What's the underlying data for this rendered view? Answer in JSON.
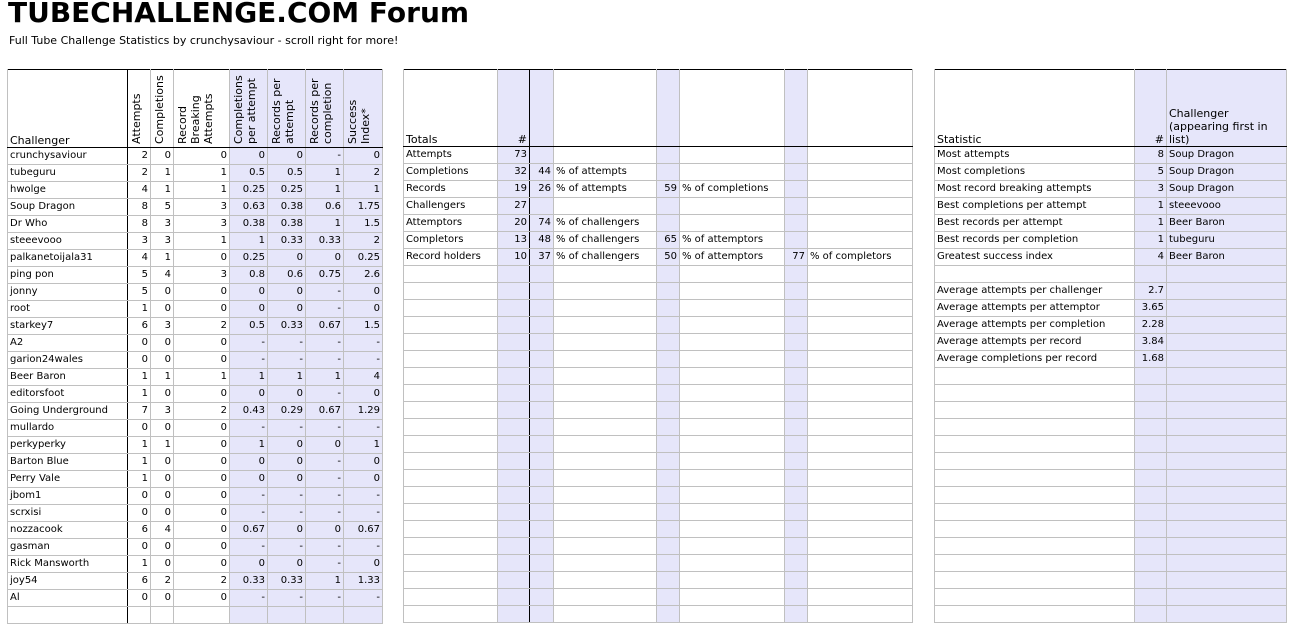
{
  "header": {
    "title": "TUBECHALLENGE.COM Forum",
    "subtitle": "Full Tube Challenge Statistics by crunchysaviour - scroll right for more!"
  },
  "colors": {
    "shaded_column": "#e6e6fa",
    "grid": "#c0c0c0"
  },
  "challengers_table": {
    "columns": [
      "Challenger",
      "Attempts",
      "Completions",
      "Record Breaking Attempts",
      "Completions per attempt",
      "Records per attempt",
      "Records per completion",
      "Success Index*"
    ],
    "rows": [
      [
        "crunchysaviour",
        "2",
        "0",
        "0",
        "0",
        "0",
        "-",
        "0"
      ],
      [
        "tubeguru",
        "2",
        "1",
        "1",
        "0.5",
        "0.5",
        "1",
        "2"
      ],
      [
        "hwolge",
        "4",
        "1",
        "1",
        "0.25",
        "0.25",
        "1",
        "1"
      ],
      [
        "Soup Dragon",
        "8",
        "5",
        "3",
        "0.63",
        "0.38",
        "0.6",
        "1.75"
      ],
      [
        "Dr Who",
        "8",
        "3",
        "3",
        "0.38",
        "0.38",
        "1",
        "1.5"
      ],
      [
        "steeevooo",
        "3",
        "3",
        "1",
        "1",
        "0.33",
        "0.33",
        "2"
      ],
      [
        "palkanetoijala31",
        "4",
        "1",
        "0",
        "0.25",
        "0",
        "0",
        "0.25"
      ],
      [
        "ping pon",
        "5",
        "4",
        "3",
        "0.8",
        "0.6",
        "0.75",
        "2.6"
      ],
      [
        "jonny",
        "5",
        "0",
        "0",
        "0",
        "0",
        "-",
        "0"
      ],
      [
        "root",
        "1",
        "0",
        "0",
        "0",
        "0",
        "-",
        "0"
      ],
      [
        "starkey7",
        "6",
        "3",
        "2",
        "0.5",
        "0.33",
        "0.67",
        "1.5"
      ],
      [
        "A2",
        "0",
        "0",
        "0",
        "-",
        "-",
        "-",
        "-"
      ],
      [
        "garion24wales",
        "0",
        "0",
        "0",
        "-",
        "-",
        "-",
        "-"
      ],
      [
        "Beer Baron",
        "1",
        "1",
        "1",
        "1",
        "1",
        "1",
        "4"
      ],
      [
        "editorsfoot",
        "1",
        "0",
        "0",
        "0",
        "0",
        "-",
        "0"
      ],
      [
        "Going Underground",
        "7",
        "3",
        "2",
        "0.43",
        "0.29",
        "0.67",
        "1.29"
      ],
      [
        "mullardo",
        "0",
        "0",
        "0",
        "-",
        "-",
        "-",
        "-"
      ],
      [
        "perkyperky",
        "1",
        "1",
        "0",
        "1",
        "0",
        "0",
        "1"
      ],
      [
        "Barton Blue",
        "1",
        "0",
        "0",
        "0",
        "0",
        "-",
        "0"
      ],
      [
        "Perry Vale",
        "1",
        "0",
        "0",
        "0",
        "0",
        "-",
        "0"
      ],
      [
        "jbom1",
        "0",
        "0",
        "0",
        "-",
        "-",
        "-",
        "-"
      ],
      [
        "scrxisi",
        "0",
        "0",
        "0",
        "-",
        "-",
        "-",
        "-"
      ],
      [
        "nozzacook",
        "6",
        "4",
        "0",
        "0.67",
        "0",
        "0",
        "0.67"
      ],
      [
        "gasman",
        "0",
        "0",
        "0",
        "-",
        "-",
        "-",
        "-"
      ],
      [
        "Rick Mansworth",
        "1",
        "0",
        "0",
        "0",
        "0",
        "-",
        "0"
      ],
      [
        "joy54",
        "6",
        "2",
        "2",
        "0.33",
        "0.33",
        "1",
        "1.33"
      ],
      [
        "Al",
        "0",
        "0",
        "0",
        "-",
        "-",
        "-",
        "-"
      ]
    ]
  },
  "totals_table": {
    "columns": [
      "Totals",
      "#"
    ],
    "rows": [
      [
        "Attempts",
        "73",
        "",
        "",
        "",
        "",
        "",
        ""
      ],
      [
        "Completions",
        "32",
        "44",
        "% of attempts",
        "",
        "",
        "",
        ""
      ],
      [
        "Records",
        "19",
        "26",
        "% of attempts",
        "59",
        "% of completions",
        "",
        ""
      ],
      [
        "Challengers",
        "27",
        "",
        "",
        "",
        "",
        "",
        ""
      ],
      [
        "Attemptors",
        "20",
        "74",
        "% of challengers",
        "",
        "",
        "",
        ""
      ],
      [
        "Completors",
        "13",
        "48",
        "% of challengers",
        "65",
        "% of attemptors",
        "",
        ""
      ],
      [
        "Record holders",
        "10",
        "37",
        "% of challengers",
        "50",
        "% of attemptors",
        "77",
        "% of completors"
      ]
    ]
  },
  "stats_table": {
    "columns": [
      "Statistic",
      "#",
      "Challenger (appearing first in list)"
    ],
    "rows": [
      [
        "Most attempts",
        "8",
        "Soup Dragon"
      ],
      [
        "Most completions",
        "5",
        "Soup Dragon"
      ],
      [
        "Most record breaking attempts",
        "3",
        "Soup Dragon"
      ],
      [
        "Best completions per attempt",
        "1",
        "steeevooo"
      ],
      [
        "Best records per attempt",
        "1",
        "Beer Baron"
      ],
      [
        "Best records per completion",
        "1",
        "tubeguru"
      ],
      [
        "Greatest success index",
        "4",
        "Beer Baron"
      ],
      [
        "",
        "",
        ""
      ],
      [
        "Average attempts per challenger",
        "2.7",
        ""
      ],
      [
        "Average attempts per attemptor",
        "3.65",
        ""
      ],
      [
        "Average attempts per completion",
        "2.28",
        ""
      ],
      [
        "Average attempts per record",
        "3.84",
        ""
      ],
      [
        "Average completions per record",
        "1.68",
        ""
      ]
    ]
  }
}
